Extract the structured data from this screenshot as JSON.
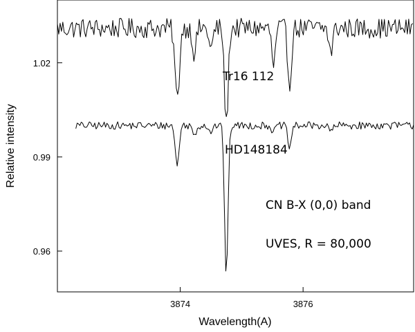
{
  "chart_data": {
    "type": "line",
    "title": "",
    "xlabel": "Wavelength(A)",
    "ylabel": "Relative intensity",
    "xlim": [
      3872.0,
      3877.8
    ],
    "ylim": [
      0.947,
      1.04
    ],
    "xticks": [
      3874,
      3876
    ],
    "xtick_labels": [
      "3874",
      "3876"
    ],
    "yticks": [
      0.96,
      0.99,
      1.02
    ],
    "ytick_labels": [
      "0.96",
      "0.99",
      "1.02"
    ],
    "grid": false,
    "legend": "none",
    "line_color": "#000000",
    "series": [
      {
        "label": "Tr16 112",
        "baseline": 1.031,
        "x_start": 3872.0,
        "x_end": 3877.8,
        "absorption_lines": [
          {
            "x": 3873.95,
            "depth": 0.023,
            "width": 0.035
          },
          {
            "x": 3874.23,
            "depth": 0.008,
            "width": 0.03
          },
          {
            "x": 3874.5,
            "depth": 0.007,
            "width": 0.03
          },
          {
            "x": 3874.75,
            "depth": 0.031,
            "width": 0.03
          },
          {
            "x": 3875.52,
            "depth": 0.012,
            "width": 0.03
          },
          {
            "x": 3875.78,
            "depth": 0.018,
            "width": 0.03
          },
          {
            "x": 3876.45,
            "depth": 0.008,
            "width": 0.03
          }
        ]
      },
      {
        "label": "HD148184",
        "baseline": 1.0,
        "x_start": 3872.3,
        "x_end": 3877.8,
        "absorption_lines": [
          {
            "x": 3873.95,
            "depth": 0.013,
            "width": 0.03
          },
          {
            "x": 3874.23,
            "depth": 0.003,
            "width": 0.03
          },
          {
            "x": 3874.5,
            "depth": 0.002,
            "width": 0.03
          },
          {
            "x": 3874.75,
            "depth": 0.048,
            "width": 0.028
          },
          {
            "x": 3875.52,
            "depth": 0.002,
            "width": 0.03
          },
          {
            "x": 3875.78,
            "depth": 0.007,
            "width": 0.03
          },
          {
            "x": 3876.45,
            "depth": 0.002,
            "width": 0.03
          }
        ]
      }
    ],
    "annotations": [
      {
        "text": "Tr16 112"
      },
      {
        "text": "HD148184"
      },
      {
        "text": "CN B-X (0,0) band"
      },
      {
        "text": "UVES, R = 80,000"
      }
    ]
  }
}
